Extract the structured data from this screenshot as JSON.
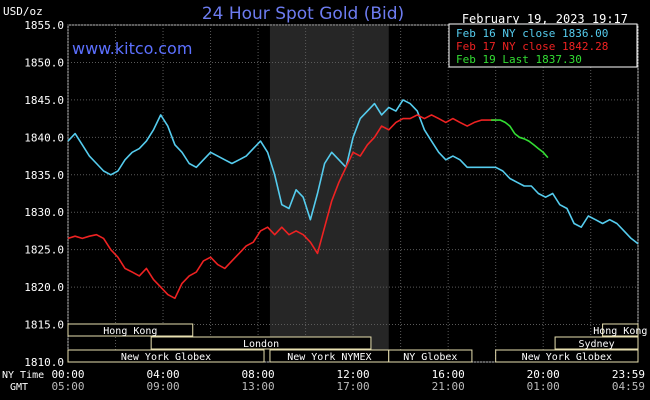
{
  "chart_data": {
    "type": "line",
    "title": "24 Hour Spot Gold (Bid)",
    "watermark": "www.kitco.com",
    "timestamp": "February 19, 2023 19:17",
    "y_unit_label": "USD/oz",
    "ylim": [
      1810,
      1855
    ],
    "y_ticks": [
      "1855.0",
      "1850.0",
      "1845.0",
      "1840.0",
      "1835.0",
      "1830.0",
      "1825.0",
      "1820.0",
      "1815.0",
      "1810.0"
    ],
    "x_row_label_ny": "NY Time",
    "x_row_label_gmt": "GMT",
    "x_ticks_ny": [
      "00:00",
      "04:00",
      "08:00",
      "12:00",
      "16:00",
      "20:00",
      "23:59"
    ],
    "x_ticks_gmt": [
      "05:00",
      "09:00",
      "13:00",
      "17:00",
      "21:00",
      "01:00",
      "04:59"
    ],
    "legend": [
      {
        "label": "Feb 16 NY close 1836.00",
        "color": "#55ccee"
      },
      {
        "label": "Feb 17 NY close 1842.28",
        "color": "#ee2222"
      },
      {
        "label": "Feb 19 Last 1837.30",
        "color": "#33dd33"
      }
    ],
    "markets": [
      {
        "label": "Hong Kong",
        "row": 0,
        "start": 0,
        "end": 5.25
      },
      {
        "label": "Hong Kong",
        "row": 0,
        "start": 22.5,
        "end": 23.99
      },
      {
        "label": "London",
        "row": 1,
        "start": 3.5,
        "end": 12.75
      },
      {
        "label": "Sydney",
        "row": 1,
        "start": 20.5,
        "end": 23.99
      },
      {
        "label": "New York Globex",
        "row": 2,
        "start": 0,
        "end": 8.25
      },
      {
        "label": "New York NYMEX",
        "row": 2,
        "start": 8.5,
        "end": 13.5
      },
      {
        "label": "NY Globex",
        "row": 2,
        "start": 13.5,
        "end": 17.0
      },
      {
        "label": "New York Globex",
        "row": 2,
        "start": 18.0,
        "end": 23.99
      }
    ],
    "nymex_shade": [
      8.5,
      13.5
    ],
    "series": [
      {
        "name": "Feb 16",
        "color": "#55ccee",
        "x": [
          0,
          0.3,
          0.6,
          0.9,
          1.2,
          1.5,
          1.8,
          2.1,
          2.4,
          2.7,
          3.0,
          3.3,
          3.6,
          3.9,
          4.2,
          4.5,
          4.8,
          5.1,
          5.4,
          5.7,
          6.0,
          6.3,
          6.6,
          6.9,
          7.2,
          7.5,
          7.8,
          8.1,
          8.4,
          8.7,
          9.0,
          9.3,
          9.6,
          9.9,
          10.2,
          10.5,
          10.8,
          11.1,
          11.4,
          11.7,
          12.0,
          12.3,
          12.6,
          12.9,
          13.2,
          13.5,
          13.8,
          14.1,
          14.4,
          14.7,
          15.0,
          15.3,
          15.6,
          15.9,
          16.2,
          16.5,
          16.8,
          17.1,
          17.4,
          17.7,
          18.0,
          18.3,
          18.6,
          18.9,
          19.2,
          19.5,
          19.8,
          20.1,
          20.4,
          20.7,
          21.0,
          21.3,
          21.6,
          21.9,
          22.2,
          22.5,
          22.8,
          23.1,
          23.4,
          23.7,
          23.99
        ],
        "values": [
          1839.5,
          1840.5,
          1839.0,
          1837.5,
          1836.5,
          1835.5,
          1835.0,
          1835.5,
          1837.0,
          1838.0,
          1838.5,
          1839.5,
          1841.0,
          1843.0,
          1841.5,
          1839.0,
          1838.0,
          1836.5,
          1836.0,
          1837.0,
          1838.0,
          1837.5,
          1837.0,
          1836.5,
          1837.0,
          1837.5,
          1838.5,
          1839.5,
          1838.0,
          1835.0,
          1831.0,
          1830.5,
          1833.0,
          1832.0,
          1829.0,
          1832.5,
          1836.5,
          1838.0,
          1837.0,
          1836.0,
          1840.0,
          1842.5,
          1843.5,
          1844.5,
          1843.0,
          1844.0,
          1843.5,
          1845.0,
          1844.5,
          1843.5,
          1841.0,
          1839.5,
          1838.0,
          1837.0,
          1837.5,
          1837.0,
          1836.0,
          1836.0,
          1836.0,
          1836.0,
          1836.0,
          1835.5,
          1834.5,
          1834.0,
          1833.5,
          1833.5,
          1832.5,
          1832.0,
          1832.5,
          1831.0,
          1830.5,
          1828.5,
          1828.0,
          1829.5,
          1829.0,
          1828.5,
          1829.0,
          1828.5,
          1827.5,
          1826.5,
          1825.8
        ]
      },
      {
        "name": "Feb 17",
        "color": "#ee2222",
        "x": [
          0,
          0.3,
          0.6,
          0.9,
          1.2,
          1.5,
          1.8,
          2.1,
          2.4,
          2.7,
          3.0,
          3.3,
          3.6,
          3.9,
          4.2,
          4.5,
          4.8,
          5.1,
          5.4,
          5.7,
          6.0,
          6.3,
          6.6,
          6.9,
          7.2,
          7.5,
          7.8,
          8.1,
          8.4,
          8.7,
          9.0,
          9.3,
          9.6,
          9.9,
          10.2,
          10.5,
          10.8,
          11.1,
          11.4,
          11.7,
          12.0,
          12.3,
          12.6,
          12.9,
          13.2,
          13.5,
          13.8,
          14.1,
          14.4,
          14.7,
          15.0,
          15.3,
          15.6,
          15.9,
          16.2,
          16.5,
          16.8,
          17.1,
          17.4,
          17.7,
          18.0
        ],
        "values": [
          1826.5,
          1826.8,
          1826.5,
          1826.8,
          1827.0,
          1826.5,
          1825.0,
          1824.0,
          1822.5,
          1822.0,
          1821.5,
          1822.5,
          1821.0,
          1820.0,
          1819.0,
          1818.5,
          1820.5,
          1821.5,
          1822.0,
          1823.5,
          1824.0,
          1823.0,
          1822.5,
          1823.5,
          1824.5,
          1825.5,
          1826.0,
          1827.5,
          1828.0,
          1827.0,
          1828.0,
          1827.0,
          1827.5,
          1827.0,
          1826.0,
          1824.5,
          1828.0,
          1831.5,
          1834.0,
          1836.0,
          1838.0,
          1837.5,
          1839.0,
          1840.0,
          1841.5,
          1841.0,
          1842.0,
          1842.5,
          1842.5,
          1843.0,
          1842.5,
          1843.0,
          1842.5,
          1842.0,
          1842.5,
          1842.0,
          1841.5,
          1842.0,
          1842.3,
          1842.3,
          1842.3
        ]
      },
      {
        "name": "Feb 19",
        "color": "#33dd33",
        "x": [
          17.8,
          18.0,
          18.2,
          18.4,
          18.6,
          18.8,
          19.0,
          19.2,
          19.4,
          19.6,
          19.8,
          20.0,
          20.2
        ],
        "values": [
          1842.3,
          1842.3,
          1842.3,
          1842.0,
          1841.5,
          1840.5,
          1840.0,
          1839.8,
          1839.5,
          1839.0,
          1838.5,
          1838.0,
          1837.3
        ]
      }
    ]
  }
}
